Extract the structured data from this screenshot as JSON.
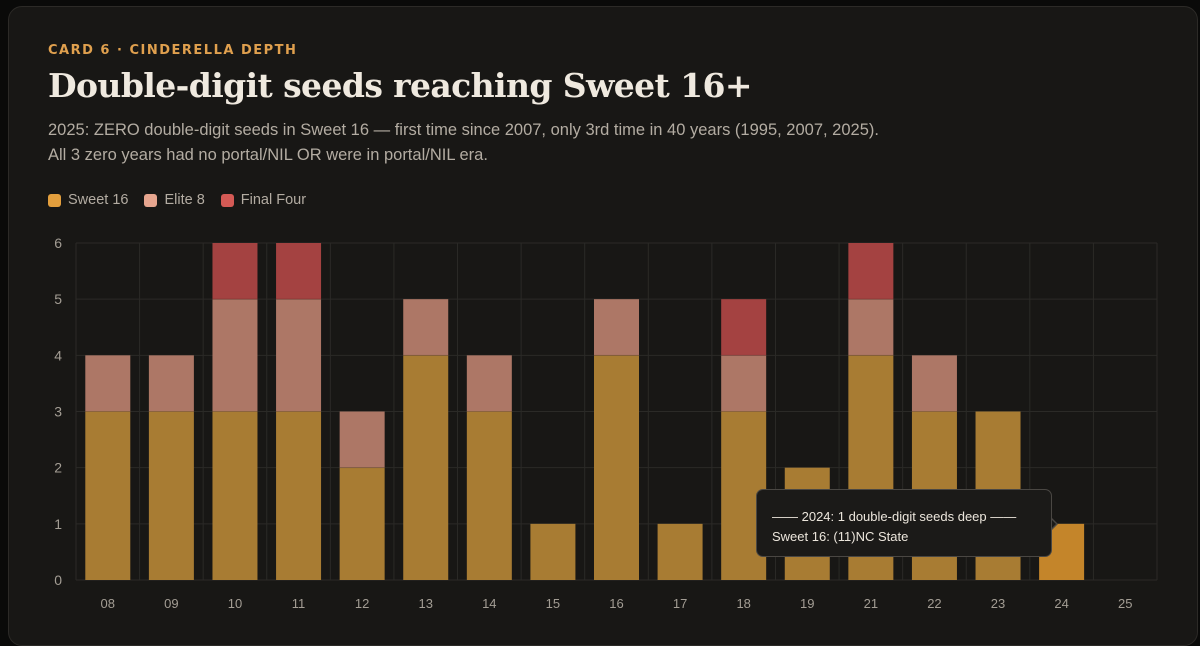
{
  "card": {
    "eyebrow": "CARD 6 · CINDERELLA DEPTH",
    "title": "Double-digit seeds reaching Sweet 16+",
    "subtitle": "2025: ZERO double-digit seeds in Sweet 16 — first time since 2007, only 3rd time in 40 years (1995, 2007, 2025). All 3 zero years had no portal/NIL OR were in portal/NIL era."
  },
  "legend": [
    {
      "label": "Sweet 16",
      "color": "#e39f3d"
    },
    {
      "label": "Elite 8",
      "color": "#e6a58e"
    },
    {
      "label": "Final Four",
      "color": "#d45a55"
    }
  ],
  "tooltip": {
    "header": "—— 2024: 1 double-digit seeds deep ——",
    "line": "Sweet 16: (11)NC State"
  },
  "chart_data": {
    "type": "bar",
    "stacked": true,
    "categories": [
      "08",
      "09",
      "10",
      "11",
      "12",
      "13",
      "14",
      "15",
      "16",
      "17",
      "18",
      "19",
      "21",
      "22",
      "23",
      "24",
      "25"
    ],
    "series": [
      {
        "name": "Sweet 16",
        "values": [
          3,
          3,
          3,
          3,
          2,
          4,
          3,
          1,
          4,
          1,
          3,
          2,
          4,
          3,
          3,
          1,
          0
        ],
        "color": "#a87c33"
      },
      {
        "name": "Elite 8",
        "values": [
          1,
          1,
          2,
          2,
          1,
          1,
          1,
          0,
          1,
          0,
          1,
          0,
          1,
          1,
          0,
          0,
          0
        ],
        "color": "#ad7766"
      },
      {
        "name": "Final Four",
        "values": [
          0,
          0,
          1,
          1,
          0,
          0,
          0,
          0,
          0,
          0,
          1,
          0,
          1,
          0,
          0,
          0,
          0
        ],
        "color": "#a44241"
      }
    ],
    "highlight_index": 15,
    "highlight_color": "#c4852a",
    "yticks": [
      0,
      1,
      2,
      3,
      4,
      5,
      6
    ],
    "ylim": [
      0,
      6
    ],
    "grid": true
  }
}
